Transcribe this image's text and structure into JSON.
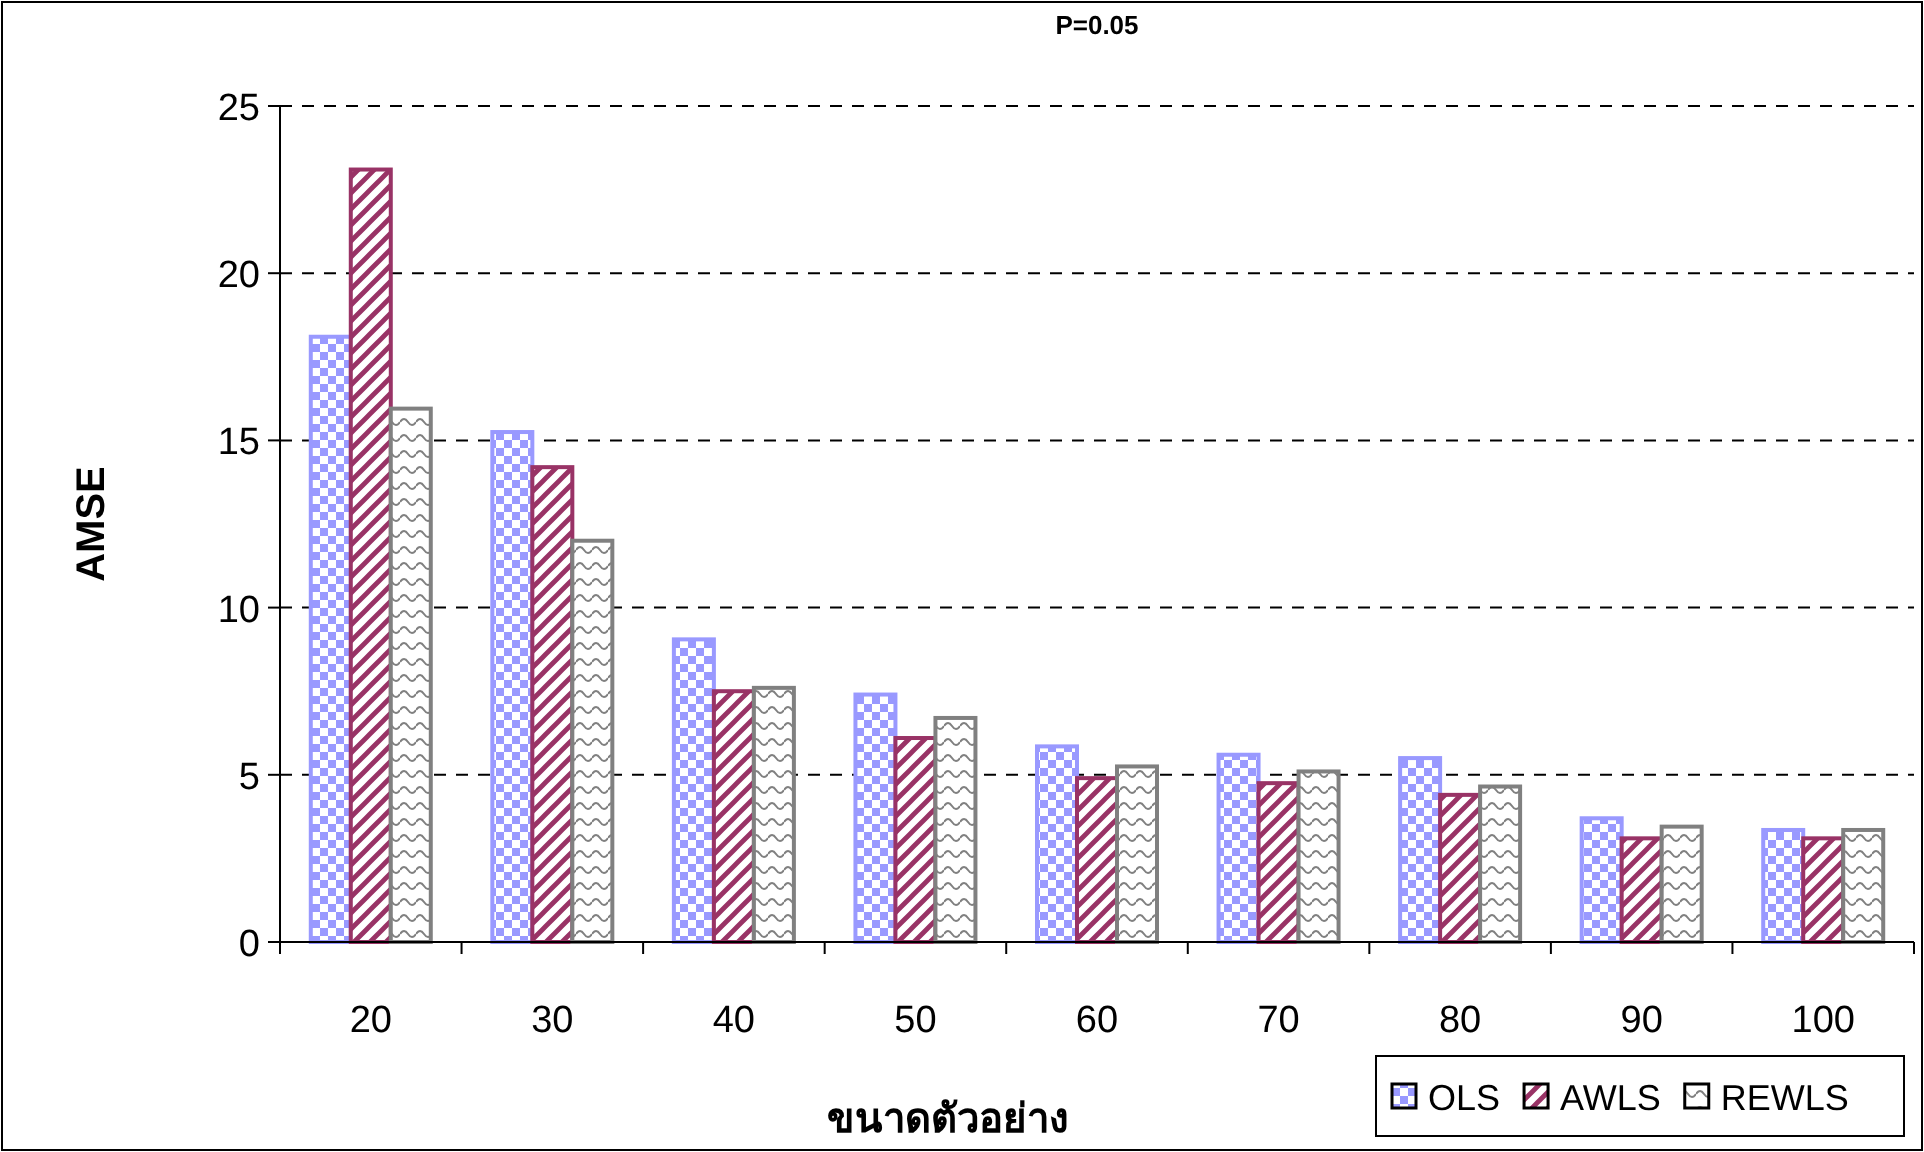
{
  "chart_data": {
    "type": "bar",
    "title": "P=0.05",
    "xlabel": "ขนาดตัวอย่าง",
    "ylabel": "AMSE",
    "categories": [
      "20",
      "30",
      "40",
      "50",
      "60",
      "70",
      "80",
      "90",
      "100"
    ],
    "series": [
      {
        "name": "OLS",
        "color": "#9999ff",
        "values": [
          18.1,
          15.25,
          9.05,
          7.4,
          5.85,
          5.6,
          5.5,
          3.7,
          3.35
        ]
      },
      {
        "name": "AWLS",
        "color": "#993366",
        "values": [
          23.1,
          14.2,
          7.5,
          6.1,
          4.9,
          4.75,
          4.4,
          3.1,
          3.1
        ]
      },
      {
        "name": "REWLS",
        "color": "#808080",
        "values": [
          15.95,
          12.0,
          7.6,
          6.7,
          5.25,
          5.1,
          4.65,
          3.45,
          3.35
        ]
      }
    ],
    "ylim": [
      0,
      25
    ],
    "yticks": [
      0,
      5,
      10,
      15,
      20,
      25
    ],
    "grid": "y",
    "legend": "bottom right"
  }
}
